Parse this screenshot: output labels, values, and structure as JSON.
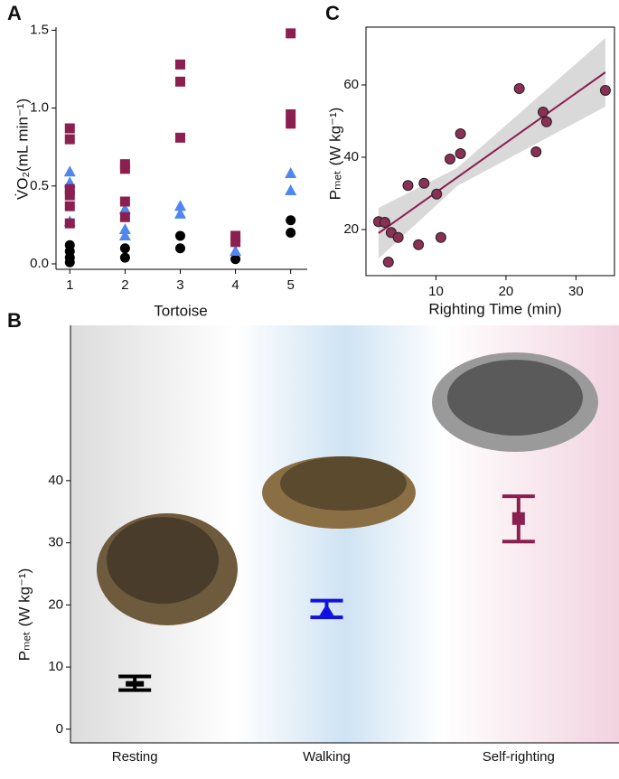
{
  "chart_data": [
    {
      "type": "scatter",
      "panel": "A",
      "x_label": "Tortoise",
      "y_label": "V̇O₂(mL min⁻¹)",
      "xlim": [
        0.75,
        5.3
      ],
      "xticks": [
        1,
        2,
        3,
        4,
        5
      ],
      "ylim": [
        -0.035,
        1.52
      ],
      "yticks": [
        {
          "value": 0,
          "label": "0.0"
        },
        {
          "value": 0.5,
          "label": "0.5"
        },
        {
          "value": 1,
          "label": "1.0"
        },
        {
          "value": 1.5,
          "label": "1.5"
        }
      ],
      "series": [
        {
          "marker": "circle",
          "color": "#000000",
          "x": [
            1,
            1,
            1,
            1,
            2,
            2,
            3,
            3,
            4,
            5,
            5
          ],
          "values": [
            0.12,
            0.08,
            0.04,
            0.01,
            0.1,
            0.04,
            0.18,
            0.1,
            0.03,
            0.28,
            0.2
          ]
        },
        {
          "marker": "triangle",
          "color": "#4f86f0",
          "x": [
            1,
            1,
            1,
            2,
            2,
            2,
            3,
            3,
            4,
            5,
            5
          ],
          "values": [
            0.59,
            0.52,
            0.27,
            0.35,
            0.22,
            0.18,
            0.37,
            0.32,
            0.08,
            0.58,
            0.47
          ]
        },
        {
          "marker": "square",
          "color": "#8b1f4f",
          "x": [
            1,
            1,
            1,
            1,
            1,
            1,
            2,
            2,
            2,
            2,
            3,
            3,
            3,
            4,
            4,
            5,
            5,
            5
          ],
          "values": [
            0.87,
            0.8,
            0.48,
            0.44,
            0.37,
            0.26,
            0.64,
            0.61,
            0.4,
            0.3,
            1.28,
            1.17,
            0.81,
            0.18,
            0.14,
            1.48,
            0.96,
            0.9
          ]
        }
      ]
    },
    {
      "type": "errorbar",
      "panel": "B",
      "y_label": "Pₘₑₜ (W kg⁻¹)",
      "categories": [
        "Resting",
        "Walking",
        "Self-righting"
      ],
      "values": [
        7.3,
        19,
        33.9
      ],
      "lower": [
        6.3,
        18,
        30.2
      ],
      "upper": [
        8.5,
        20.7,
        37.5
      ],
      "colors": [
        "#000000",
        "#1010e0",
        "#8b1f4f"
      ],
      "markers": [
        "bar",
        "triangle",
        "square"
      ],
      "ylim": [
        -2.2,
        65
      ],
      "yticks": [
        0,
        10,
        20,
        30,
        40
      ]
    },
    {
      "type": "scatter",
      "panel": "C",
      "x_label": "Righting Time (min)",
      "y_label": "Pₘₑₜ (W kg⁻¹)",
      "xlim": [
        0,
        35.5
      ],
      "xticks": [
        10,
        20,
        30
      ],
      "ylim": [
        7.25,
        76
      ],
      "yticks": [
        20,
        40,
        60
      ],
      "series": [
        {
          "marker": "circle",
          "color": "#8b2f55",
          "x": [
            1.8,
            2.7,
            3.2,
            3.6,
            4.6,
            6,
            7.5,
            8.3,
            10.1,
            10.7,
            12,
            13.5,
            13.5,
            21.9,
            24.3,
            25.3,
            25.8,
            34.2
          ],
          "values": [
            22.2,
            22,
            11,
            19.2,
            17.8,
            32.2,
            15.8,
            32.8,
            29.8,
            17.8,
            39.5,
            41,
            46.5,
            59,
            41.5,
            52.5,
            49.8,
            58.5
          ]
        }
      ],
      "fit": {
        "color": "#8b1f4f",
        "x": [
          1.8,
          34.2
        ],
        "y": [
          19,
          63.5
        ]
      },
      "band": {
        "color": "#cfcfcf",
        "x": [
          1.8,
          13,
          34.2
        ],
        "lower": [
          12,
          32,
          54
        ],
        "upper": [
          26,
          37,
          73
        ]
      }
    }
  ]
}
